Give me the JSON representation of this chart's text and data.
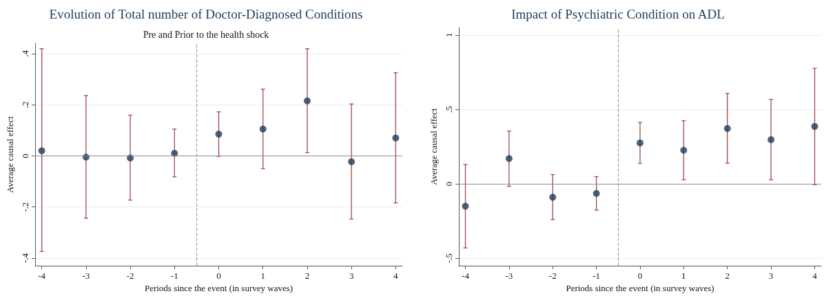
{
  "chart_data": [
    {
      "type": "scatter",
      "title": "Evolution of Total number of Doctor-Diagnosed Conditions",
      "subtitle": "Pre and Prior to the health shock",
      "xlabel": "Periods since the event (in survey waves)",
      "ylabel": "Average causal effect",
      "x": [
        -4,
        -3,
        -2,
        -1,
        0,
        1,
        2,
        3,
        4
      ],
      "series": [
        {
          "color": "#1f3b5a",
          "values": [
            0.02,
            -0.005,
            -0.008,
            0.01,
            0.085,
            0.105,
            0.215,
            -0.023,
            0.07
          ],
          "errors": [
            [
              -0.374,
              0.419
            ],
            [
              -0.244,
              0.236
            ],
            [
              -0.173,
              0.159
            ],
            [
              -0.082,
              0.105
            ],
            [
              -0.002,
              0.172
            ],
            [
              -0.05,
              0.261
            ],
            [
              0.013,
              0.419
            ],
            [
              -0.247,
              0.203
            ],
            [
              -0.184,
              0.325
            ]
          ]
        }
      ],
      "xlim": [
        -4.15,
        4.15
      ],
      "xticks": [
        -4,
        -3,
        -2,
        -1,
        0,
        1,
        2,
        3,
        4
      ],
      "ylim": [
        -0.43,
        0.44
      ],
      "yticks": [
        {
          "value": -0.4,
          "label": "-.4"
        },
        {
          "value": -0.2,
          "label": "-.2"
        },
        {
          "value": 0,
          "label": "0"
        },
        {
          "value": 0.2,
          "label": ".2"
        },
        {
          "value": 0.4,
          "label": ".4"
        }
      ],
      "ref_lines": [
        {
          "axis": "y",
          "value": 0,
          "color": "#8c8c8c",
          "line_style": "solid"
        },
        {
          "axis": "x",
          "value": -0.5,
          "color": "#a0a0a0",
          "line_style": "dashed"
        }
      ],
      "grid": "y",
      "marker": "circle"
    },
    {
      "type": "scatter",
      "title": "Impact of Psychiatric Condition on ADL",
      "xlabel": "Periods since the event (in survey waves)",
      "ylabel": "Average causal effect",
      "x": [
        -4,
        -3,
        -2,
        -1,
        0,
        1,
        2,
        3,
        4
      ],
      "series": [
        {
          "color": "#1f3b5a",
          "values": [
            -0.15,
            0.17,
            -0.09,
            -0.064,
            0.275,
            0.226,
            0.372,
            0.297,
            0.386
          ],
          "errors": [
            [
              -0.43,
              0.13
            ],
            [
              -0.016,
              0.355
            ],
            [
              -0.24,
              0.063
            ],
            [
              -0.176,
              0.049
            ],
            [
              0.137,
              0.412
            ],
            [
              0.028,
              0.424
            ],
            [
              0.139,
              0.607
            ],
            [
              0.028,
              0.567
            ],
            [
              -0.005,
              0.776
            ]
          ]
        }
      ],
      "xlim": [
        -4.15,
        4.15
      ],
      "xticks": [
        -4,
        -3,
        -2,
        -1,
        0,
        1,
        2,
        3,
        4
      ],
      "ylim": [
        -0.55,
        1.05
      ],
      "yticks": [
        {
          "value": -0.5,
          "label": "-.5"
        },
        {
          "value": 0,
          "label": "0"
        },
        {
          "value": 0.5,
          "label": ".5"
        },
        {
          "value": 1,
          "label": "1"
        }
      ],
      "ref_lines": [
        {
          "axis": "y",
          "value": 0,
          "color": "#8c8c8c",
          "line_style": "solid"
        },
        {
          "axis": "x",
          "value": -0.5,
          "color": "#a0a0a0",
          "line_style": "dashed"
        }
      ],
      "grid": "y",
      "marker": "circle"
    }
  ]
}
